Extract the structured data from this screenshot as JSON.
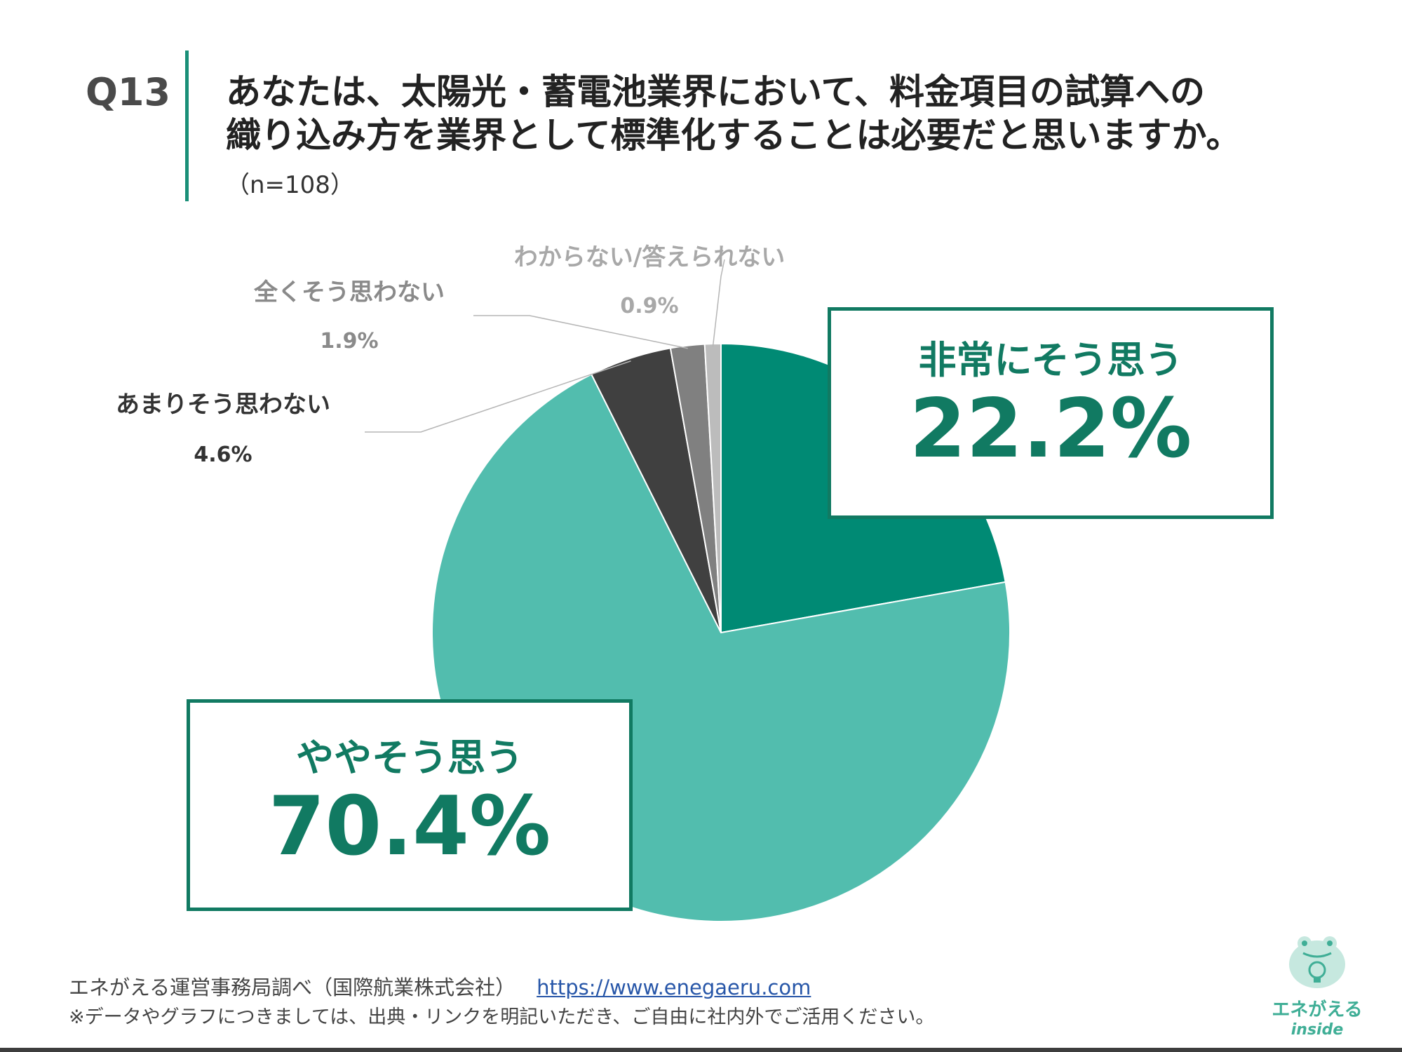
{
  "header": {
    "qnum": "Q13",
    "title_line1": "あなたは、太陽光・蓄電池業界において、料金項目の試算への",
    "title_line2": "織り込み方を業界として標準化することは必要だと思いますか。",
    "n": "（n=108）"
  },
  "chart_data": {
    "type": "pie",
    "start": "12 o'clock, clockwise",
    "slices": [
      {
        "label": "非常にそう思う",
        "value": 22.2,
        "display": "22.2%",
        "color": "#008a74"
      },
      {
        "label": "ややそう思う",
        "value": 70.4,
        "display": "70.4%",
        "color": "#52bdae"
      },
      {
        "label": "あまりそう思わない",
        "value": 4.6,
        "display": "4.6%",
        "color": "#404040"
      },
      {
        "label": "全くそう思わない",
        "value": 1.9,
        "display": "1.9%",
        "color": "#808080"
      },
      {
        "label": "わからない/答えられない",
        "value": 0.9,
        "display": "0.9%",
        "color": "#bcbcbc"
      }
    ]
  },
  "footer": {
    "source": "エネがえる運営事務局調べ（国際航業株式会社）",
    "url": "https://www.enegaeru.com",
    "note": "※データやグラフにつきましては、出典・リンクを明記いただき、ご自由に社内外でご活用ください。"
  },
  "logo": {
    "text": "エネがえる",
    "sub": "inside"
  }
}
